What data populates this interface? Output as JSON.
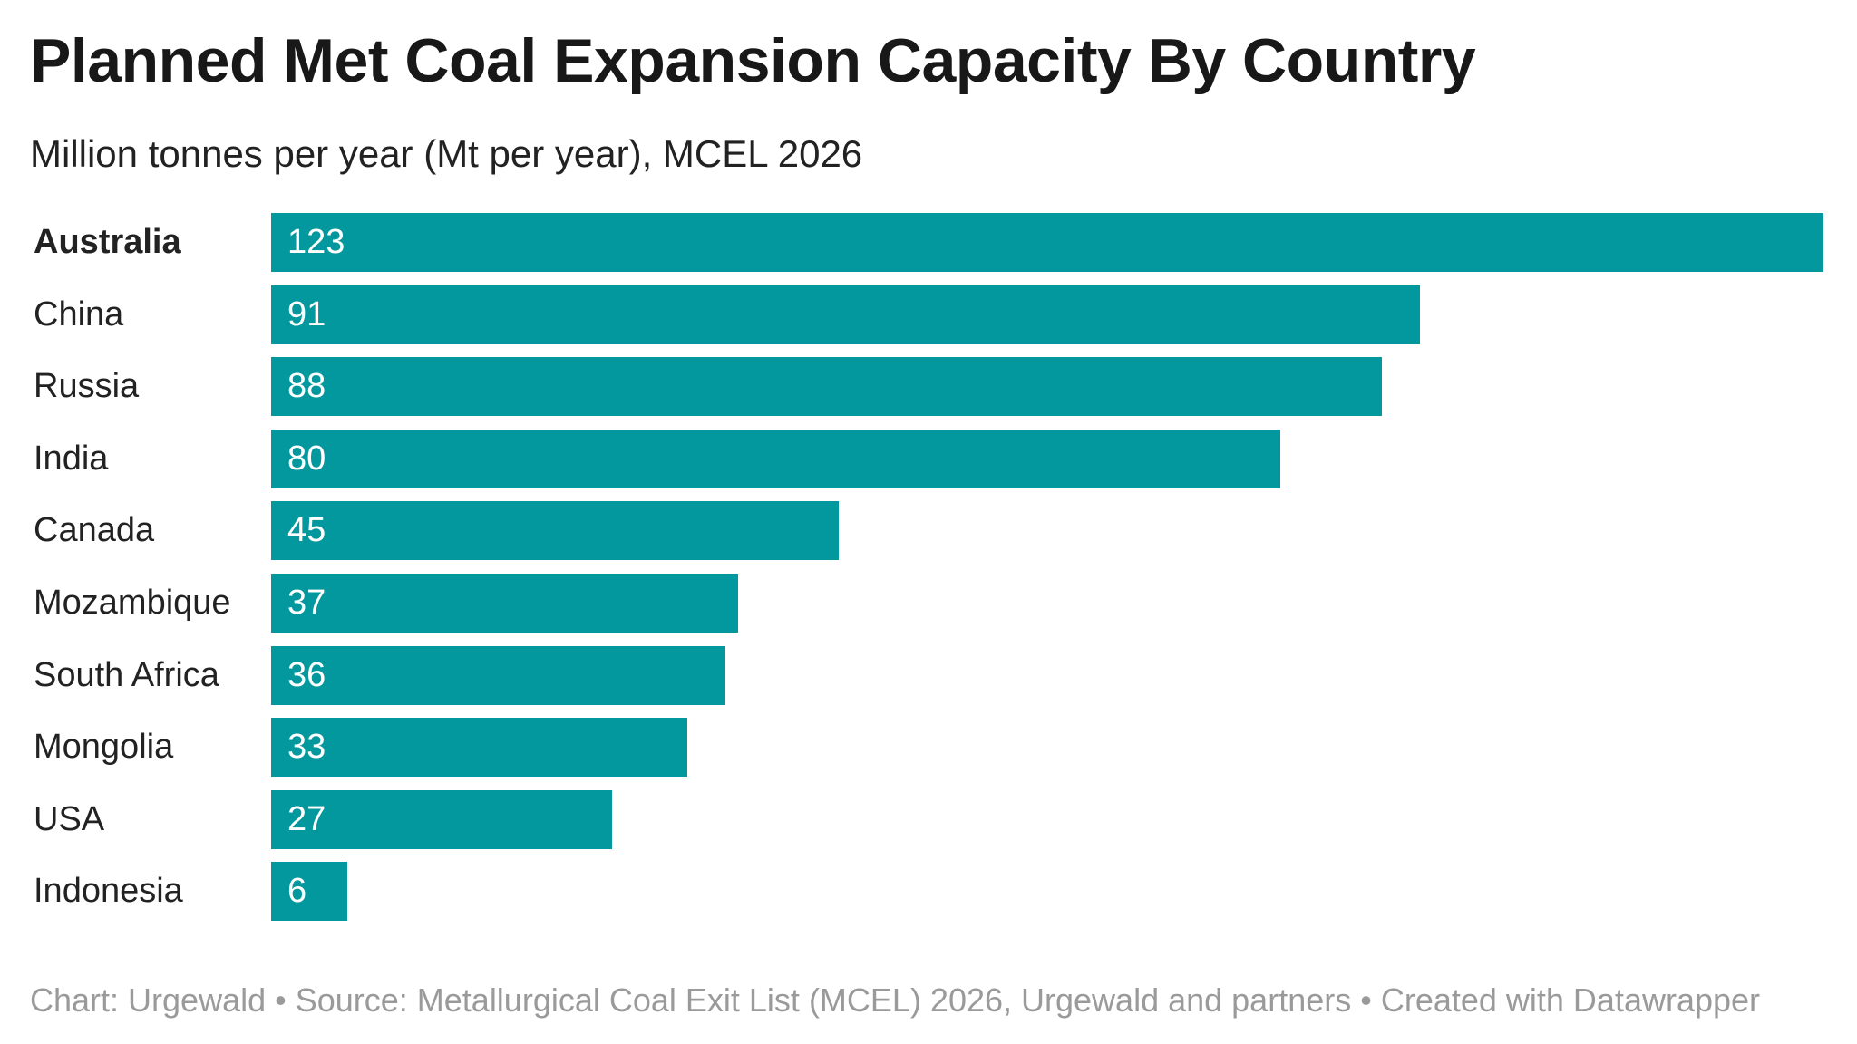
{
  "chart_data": {
    "type": "bar",
    "orientation": "horizontal",
    "title": "Planned Met Coal Expansion Capacity By Country",
    "subtitle": "Million tonnes per year (Mt per year), MCEL 2026",
    "categories": [
      "Australia",
      "China",
      "Russia",
      "India",
      "Canada",
      "Mozambique",
      "South Africa",
      "Mongolia",
      "USA",
      "Indonesia"
    ],
    "values": [
      123,
      91,
      88,
      80,
      45,
      37,
      36,
      33,
      27,
      6
    ],
    "value_labels": [
      "123",
      "91",
      "88",
      "80",
      "45",
      "37",
      "36",
      "33",
      "27",
      "6"
    ],
    "highlighted_category": "Australia",
    "xlim": [
      0,
      123
    ],
    "grid": false,
    "bar_color": "#03989e",
    "footer": "Chart: Urgewald • Source: Metallurgical Coal Exit List (MCEL) 2026, Urgewald and partners • Created with Datawrapper"
  }
}
